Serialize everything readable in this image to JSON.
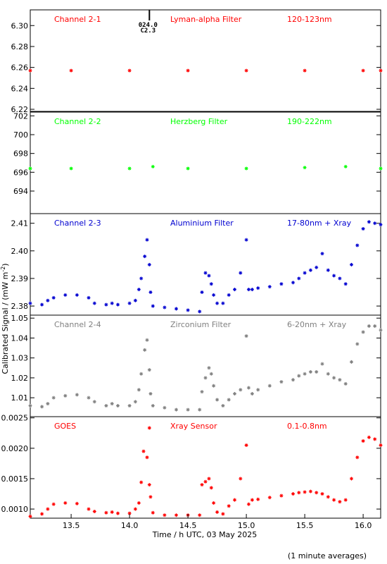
{
  "chart_data": {
    "type": "scatter",
    "xlabel": "Time / h UTC, 03 May 2025",
    "ylabel": "Calibrated Signal / (mW m",
    "ylabel_sup": "-2",
    "ylabel_close": ")",
    "footnote": "(1 minute averages)",
    "xlim": [
      13.15,
      16.15
    ],
    "xticks": [
      "13.5",
      "14.0",
      "14.5",
      "15.0",
      "15.5",
      "16.0"
    ],
    "event_marker": {
      "x": 14.17,
      "labels": [
        "024.0",
        "C2.3"
      ]
    },
    "panels": [
      {
        "id": "ch21",
        "labels": [
          "Channel 2-1",
          "Lyman-alpha Filter",
          "120-123nm"
        ],
        "color": "#ff0000",
        "ylim": [
          6.218,
          6.315
        ],
        "yticks": [
          "6.30",
          "6.28",
          "6.26",
          "6.24",
          "6.22"
        ],
        "points": [
          [
            13.15,
            6.257
          ],
          [
            13.5,
            6.257
          ],
          [
            14.0,
            6.257
          ],
          [
            14.5,
            6.257
          ],
          [
            15.0,
            6.257
          ],
          [
            15.5,
            6.257
          ],
          [
            16.0,
            6.257
          ],
          [
            16.15,
            6.257
          ]
        ]
      },
      {
        "id": "ch22",
        "labels": [
          "Channel 2-2",
          "Herzberg Filter",
          "190-222nm"
        ],
        "color": "#00ff00",
        "ylim": [
          691.6,
          702.4
        ],
        "yticks": [
          "702",
          "700",
          "698",
          "696",
          "694"
        ],
        "points": [
          [
            13.15,
            696.4
          ],
          [
            13.5,
            696.4
          ],
          [
            14.0,
            696.4
          ],
          [
            14.2,
            696.6
          ],
          [
            14.5,
            696.4
          ],
          [
            15.0,
            696.4
          ],
          [
            15.5,
            696.5
          ],
          [
            15.85,
            696.6
          ],
          [
            16.15,
            696.4
          ]
        ]
      },
      {
        "id": "ch23",
        "labels": [
          "Channel 2-3",
          "Aluminium Filter",
          "17-80nm + Xray"
        ],
        "color": "#0000d0",
        "ylim": [
          2.3767,
          2.4135
        ],
        "yticks": [
          "2.41",
          "2.40",
          "2.39",
          "2.38"
        ],
        "points": [
          [
            13.15,
            2.381
          ],
          [
            13.25,
            2.3805
          ],
          [
            13.3,
            2.382
          ],
          [
            13.35,
            2.383
          ],
          [
            13.45,
            2.384
          ],
          [
            13.55,
            2.384
          ],
          [
            13.65,
            2.383
          ],
          [
            13.7,
            2.381
          ],
          [
            13.8,
            2.3805
          ],
          [
            13.85,
            2.381
          ],
          [
            13.9,
            2.3805
          ],
          [
            14.0,
            2.381
          ],
          [
            14.05,
            2.382
          ],
          [
            14.08,
            2.386
          ],
          [
            14.1,
            2.39
          ],
          [
            14.13,
            2.398
          ],
          [
            14.15,
            2.404
          ],
          [
            14.17,
            2.395
          ],
          [
            14.18,
            2.385
          ],
          [
            14.2,
            2.38
          ],
          [
            14.3,
            2.3795
          ],
          [
            14.4,
            2.379
          ],
          [
            14.5,
            2.3785
          ],
          [
            14.6,
            2.378
          ],
          [
            14.62,
            2.385
          ],
          [
            14.65,
            2.392
          ],
          [
            14.68,
            2.391
          ],
          [
            14.7,
            2.388
          ],
          [
            14.72,
            2.384
          ],
          [
            14.75,
            2.381
          ],
          [
            14.8,
            2.381
          ],
          [
            14.85,
            2.384
          ],
          [
            14.9,
            2.386
          ],
          [
            14.95,
            2.392
          ],
          [
            15.0,
            2.404
          ],
          [
            15.02,
            2.386
          ],
          [
            15.05,
            2.386
          ],
          [
            15.1,
            2.3865
          ],
          [
            15.2,
            2.387
          ],
          [
            15.3,
            2.388
          ],
          [
            15.4,
            2.3885
          ],
          [
            15.45,
            2.39
          ],
          [
            15.5,
            2.392
          ],
          [
            15.55,
            2.393
          ],
          [
            15.6,
            2.394
          ],
          [
            15.65,
            2.399
          ],
          [
            15.7,
            2.393
          ],
          [
            15.75,
            2.391
          ],
          [
            15.8,
            2.39
          ],
          [
            15.85,
            2.388
          ],
          [
            15.9,
            2.395
          ],
          [
            15.95,
            2.402
          ],
          [
            16.0,
            2.408
          ],
          [
            16.05,
            2.4105
          ],
          [
            16.1,
            2.41
          ],
          [
            16.15,
            2.4095
          ]
        ]
      },
      {
        "id": "ch24",
        "labels": [
          "Channel 2-4",
          "Zirconium Filter",
          "6-20nm + Xray"
        ],
        "color": "#808080",
        "ylim": [
          1.0005,
          1.0515
        ],
        "yticks": [
          "1.05",
          "1.04",
          "1.03",
          "1.02",
          "1.01"
        ],
        "points": [
          [
            13.15,
            1.006
          ],
          [
            13.25,
            1.0055
          ],
          [
            13.3,
            1.007
          ],
          [
            13.35,
            1.01
          ],
          [
            13.45,
            1.011
          ],
          [
            13.55,
            1.0115
          ],
          [
            13.65,
            1.01
          ],
          [
            13.7,
            1.008
          ],
          [
            13.8,
            1.006
          ],
          [
            13.85,
            1.007
          ],
          [
            13.9,
            1.006
          ],
          [
            14.0,
            1.006
          ],
          [
            14.05,
            1.008
          ],
          [
            14.08,
            1.014
          ],
          [
            14.1,
            1.022
          ],
          [
            14.13,
            1.034
          ],
          [
            14.15,
            1.039
          ],
          [
            14.17,
            1.024
          ],
          [
            14.18,
            1.012
          ],
          [
            14.2,
            1.006
          ],
          [
            14.3,
            1.005
          ],
          [
            14.4,
            1.004
          ],
          [
            14.5,
            1.004
          ],
          [
            14.6,
            1.004
          ],
          [
            14.62,
            1.013
          ],
          [
            14.65,
            1.02
          ],
          [
            14.68,
            1.025
          ],
          [
            14.7,
            1.022
          ],
          [
            14.72,
            1.016
          ],
          [
            14.75,
            1.009
          ],
          [
            14.8,
            1.006
          ],
          [
            14.85,
            1.009
          ],
          [
            14.9,
            1.012
          ],
          [
            14.95,
            1.014
          ],
          [
            15.0,
            1.041
          ],
          [
            15.02,
            1.015
          ],
          [
            15.05,
            1.012
          ],
          [
            15.1,
            1.014
          ],
          [
            15.2,
            1.016
          ],
          [
            15.3,
            1.018
          ],
          [
            15.4,
            1.019
          ],
          [
            15.45,
            1.021
          ],
          [
            15.5,
            1.022
          ],
          [
            15.55,
            1.023
          ],
          [
            15.6,
            1.023
          ],
          [
            15.65,
            1.027
          ],
          [
            15.7,
            1.022
          ],
          [
            15.75,
            1.02
          ],
          [
            15.8,
            1.019
          ],
          [
            15.85,
            1.017
          ],
          [
            15.9,
            1.028
          ],
          [
            15.95,
            1.037
          ],
          [
            16.0,
            1.043
          ],
          [
            16.05,
            1.046
          ],
          [
            16.1,
            1.046
          ],
          [
            16.15,
            1.044
          ]
        ]
      },
      {
        "id": "goes",
        "labels": [
          "GOES",
          "Xray Sensor",
          "0.1-0.8nm"
        ],
        "color": "#ff0000",
        "ylim": [
          0.00085,
          0.00252
        ],
        "yticks": [
          "0.0025",
          "0.0020",
          "0.0015",
          "0.0010"
        ],
        "points": [
          [
            13.15,
            0.00088
          ],
          [
            13.25,
            0.00092
          ],
          [
            13.3,
            0.001
          ],
          [
            13.35,
            0.00108
          ],
          [
            13.45,
            0.0011
          ],
          [
            13.55,
            0.00109
          ],
          [
            13.65,
            0.001
          ],
          [
            13.7,
            0.00096
          ],
          [
            13.8,
            0.00094
          ],
          [
            13.85,
            0.00095
          ],
          [
            13.9,
            0.00093
          ],
          [
            14.0,
            0.00093
          ],
          [
            14.05,
            0.001
          ],
          [
            14.08,
            0.0011
          ],
          [
            14.1,
            0.00144
          ],
          [
            14.12,
            0.00195
          ],
          [
            14.15,
            0.00185
          ],
          [
            14.17,
            0.0014
          ],
          [
            14.18,
            0.0012
          ],
          [
            14.2,
            0.00094
          ],
          [
            14.3,
            0.0009
          ],
          [
            14.4,
            0.0009
          ],
          [
            14.5,
            0.0009
          ],
          [
            14.6,
            0.0009
          ],
          [
            14.62,
            0.0014
          ],
          [
            14.65,
            0.00145
          ],
          [
            14.68,
            0.0015
          ],
          [
            14.7,
            0.00135
          ],
          [
            14.72,
            0.0011
          ],
          [
            14.75,
            0.00095
          ],
          [
            14.8,
            0.00092
          ],
          [
            14.85,
            0.00105
          ],
          [
            14.9,
            0.00115
          ],
          [
            14.95,
            0.0015
          ],
          [
            15.0,
            0.00205
          ],
          [
            15.02,
            0.00108
          ],
          [
            15.05,
            0.00115
          ],
          [
            15.1,
            0.00116
          ],
          [
            15.2,
            0.00119
          ],
          [
            15.3,
            0.00122
          ],
          [
            15.4,
            0.00125
          ],
          [
            15.45,
            0.00127
          ],
          [
            15.5,
            0.00128
          ],
          [
            15.55,
            0.00129
          ],
          [
            15.6,
            0.00127
          ],
          [
            15.65,
            0.00125
          ],
          [
            15.7,
            0.0012
          ],
          [
            15.75,
            0.00115
          ],
          [
            15.8,
            0.00112
          ],
          [
            15.85,
            0.00115
          ],
          [
            15.9,
            0.0015
          ],
          [
            15.95,
            0.00185
          ],
          [
            16.0,
            0.00212
          ],
          [
            16.05,
            0.00218
          ],
          [
            16.1,
            0.00215
          ],
          [
            16.15,
            0.00205
          ]
        ]
      }
    ]
  },
  "style": {
    "label_colors": [
      "#ff0000",
      "#00ff00",
      "#0000d0",
      "#808080",
      "#ff0000"
    ],
    "marker": "asterisk",
    "flare_marker_color": "#ff0000"
  }
}
